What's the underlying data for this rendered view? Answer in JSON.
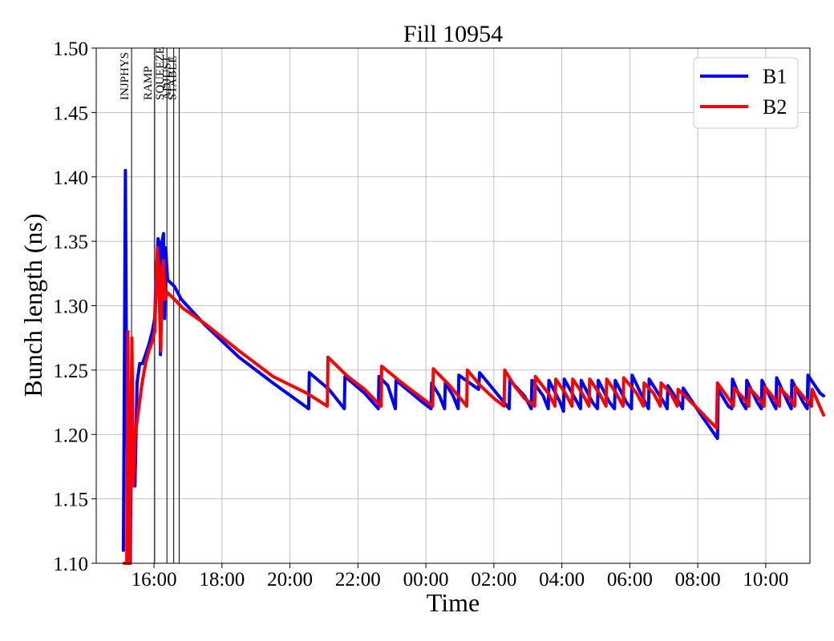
{
  "chart_data": {
    "type": "line",
    "title": "Fill 10954",
    "xlabel": "Time",
    "ylabel": "Bunch length (ns)",
    "x_unit": "hours since 00:00 of the first day",
    "xlim": [
      14.3,
      35.3
    ],
    "ylim": [
      1.1,
      1.5
    ],
    "x_ticks": [
      {
        "value": 16,
        "label": "16:00"
      },
      {
        "value": 18,
        "label": "18:00"
      },
      {
        "value": 20,
        "label": "20:00"
      },
      {
        "value": 22,
        "label": "22:00"
      },
      {
        "value": 24,
        "label": "00:00"
      },
      {
        "value": 26,
        "label": "02:00"
      },
      {
        "value": 28,
        "label": "04:00"
      },
      {
        "value": 30,
        "label": "06:00"
      },
      {
        "value": 32,
        "label": "08:00"
      },
      {
        "value": 34,
        "label": "10:00"
      }
    ],
    "y_ticks": [
      {
        "value": 1.1,
        "label": "1.10"
      },
      {
        "value": 1.15,
        "label": "1.15"
      },
      {
        "value": 1.2,
        "label": "1.20"
      },
      {
        "value": 1.25,
        "label": "1.25"
      },
      {
        "value": 1.3,
        "label": "1.30"
      },
      {
        "value": 1.35,
        "label": "1.35"
      },
      {
        "value": 1.4,
        "label": "1.40"
      },
      {
        "value": 1.45,
        "label": "1.45"
      },
      {
        "value": 1.5,
        "label": "1.50"
      }
    ],
    "grid": true,
    "legend_position": "top-right",
    "phases": [
      {
        "label": "INJPHYS",
        "x": 15.34
      },
      {
        "label": "RAMP",
        "x": 16.02
      },
      {
        "label": "SQUEEZE",
        "x": 16.38
      },
      {
        "label": "ADJUST",
        "x": 16.58
      },
      {
        "label": "STABLE",
        "x": 16.74
      }
    ],
    "series": [
      {
        "name": "B1",
        "color": "#0000ff",
        "points": [
          [
            15.1,
            1.11
          ],
          [
            15.16,
            1.405
          ],
          [
            15.19,
            1.24
          ],
          [
            15.22,
            1.18
          ],
          [
            15.24,
            1.1
          ],
          [
            15.27,
            1.14
          ],
          [
            15.3,
            1.1
          ],
          [
            15.34,
            1.22
          ],
          [
            15.38,
            1.2
          ],
          [
            15.44,
            1.16
          ],
          [
            15.5,
            1.24
          ],
          [
            15.58,
            1.255
          ],
          [
            15.66,
            1.255
          ],
          [
            15.75,
            1.262
          ],
          [
            15.85,
            1.27
          ],
          [
            15.95,
            1.28
          ],
          [
            16.02,
            1.29
          ],
          [
            16.08,
            1.33
          ],
          [
            16.12,
            1.352
          ],
          [
            16.16,
            1.348
          ],
          [
            16.19,
            1.262
          ],
          [
            16.24,
            1.35
          ],
          [
            16.28,
            1.356
          ],
          [
            16.31,
            1.29
          ],
          [
            16.34,
            1.345
          ],
          [
            16.4,
            1.32
          ],
          [
            16.6,
            1.315
          ],
          [
            16.8,
            1.305
          ],
          [
            17.5,
            1.285
          ],
          [
            18.5,
            1.26
          ],
          [
            19.5,
            1.24
          ],
          [
            20.55,
            1.22
          ],
          [
            20.57,
            1.248
          ],
          [
            21.15,
            1.235
          ],
          [
            21.6,
            1.22
          ],
          [
            21.62,
            1.245
          ],
          [
            22.2,
            1.232
          ],
          [
            22.6,
            1.22
          ],
          [
            22.62,
            1.245
          ],
          [
            22.88,
            1.238
          ],
          [
            23.1,
            1.22
          ],
          [
            23.12,
            1.242
          ],
          [
            23.9,
            1.225
          ],
          [
            24.15,
            1.22
          ],
          [
            24.17,
            1.24
          ],
          [
            24.4,
            1.23
          ],
          [
            24.55,
            1.22
          ],
          [
            24.57,
            1.24
          ],
          [
            24.8,
            1.23
          ],
          [
            24.95,
            1.22
          ],
          [
            24.97,
            1.246
          ],
          [
            25.55,
            1.235
          ],
          [
            25.58,
            1.248
          ],
          [
            26.3,
            1.225
          ],
          [
            26.45,
            1.22
          ],
          [
            26.47,
            1.242
          ],
          [
            26.9,
            1.23
          ],
          [
            27.1,
            1.22
          ],
          [
            27.12,
            1.242
          ],
          [
            27.45,
            1.23
          ],
          [
            27.6,
            1.22
          ],
          [
            27.62,
            1.242
          ],
          [
            27.95,
            1.225
          ],
          [
            28.05,
            1.218
          ],
          [
            28.07,
            1.243
          ],
          [
            28.45,
            1.225
          ],
          [
            28.55,
            1.22
          ],
          [
            28.57,
            1.242
          ],
          [
            28.9,
            1.225
          ],
          [
            29.05,
            1.22
          ],
          [
            29.07,
            1.242
          ],
          [
            29.4,
            1.225
          ],
          [
            29.55,
            1.22
          ],
          [
            29.57,
            1.242
          ],
          [
            29.9,
            1.225
          ],
          [
            30.05,
            1.22
          ],
          [
            30.07,
            1.246
          ],
          [
            30.45,
            1.225
          ],
          [
            30.55,
            1.22
          ],
          [
            30.57,
            1.243
          ],
          [
            31.0,
            1.225
          ],
          [
            31.1,
            1.22
          ],
          [
            31.12,
            1.238
          ],
          [
            31.45,
            1.225
          ],
          [
            31.55,
            1.22
          ],
          [
            31.57,
            1.236
          ],
          [
            32.1,
            1.215
          ],
          [
            32.58,
            1.197
          ],
          [
            32.6,
            1.235
          ],
          [
            32.9,
            1.222
          ],
          [
            33.0,
            1.22
          ],
          [
            33.02,
            1.243
          ],
          [
            33.3,
            1.225
          ],
          [
            33.42,
            1.22
          ],
          [
            33.44,
            1.242
          ],
          [
            33.75,
            1.225
          ],
          [
            33.87,
            1.22
          ],
          [
            33.89,
            1.242
          ],
          [
            34.2,
            1.225
          ],
          [
            34.3,
            1.22
          ],
          [
            34.32,
            1.244
          ],
          [
            34.65,
            1.225
          ],
          [
            34.75,
            1.22
          ],
          [
            34.77,
            1.242
          ],
          [
            35.1,
            1.225
          ],
          [
            35.22,
            1.22
          ],
          [
            35.24,
            1.246
          ],
          [
            35.6,
            1.232
          ],
          [
            35.7,
            1.23
          ]
        ]
      },
      {
        "name": "B2",
        "color": "#ff0000",
        "points": [
          [
            15.12,
            1.1
          ],
          [
            15.2,
            1.1
          ],
          [
            15.23,
            1.28
          ],
          [
            15.26,
            1.11
          ],
          [
            15.29,
            1.1
          ],
          [
            15.35,
            1.275
          ],
          [
            15.39,
            1.16
          ],
          [
            15.45,
            1.2
          ],
          [
            15.55,
            1.22
          ],
          [
            15.65,
            1.24
          ],
          [
            15.75,
            1.255
          ],
          [
            15.85,
            1.265
          ],
          [
            15.95,
            1.272
          ],
          [
            16.02,
            1.28
          ],
          [
            16.06,
            1.31
          ],
          [
            16.1,
            1.345
          ],
          [
            16.15,
            1.31
          ],
          [
            16.2,
            1.265
          ],
          [
            16.24,
            1.33
          ],
          [
            16.28,
            1.335
          ],
          [
            16.32,
            1.305
          ],
          [
            16.4,
            1.31
          ],
          [
            16.6,
            1.305
          ],
          [
            16.85,
            1.298
          ],
          [
            17.5,
            1.286
          ],
          [
            18.5,
            1.265
          ],
          [
            19.5,
            1.245
          ],
          [
            20.5,
            1.232
          ],
          [
            21.1,
            1.222
          ],
          [
            21.12,
            1.26
          ],
          [
            21.7,
            1.245
          ],
          [
            22.2,
            1.235
          ],
          [
            22.68,
            1.222
          ],
          [
            22.7,
            1.253
          ],
          [
            23.3,
            1.24
          ],
          [
            23.8,
            1.23
          ],
          [
            24.2,
            1.222
          ],
          [
            24.22,
            1.251
          ],
          [
            24.7,
            1.238
          ],
          [
            25.2,
            1.222
          ],
          [
            25.22,
            1.25
          ],
          [
            25.6,
            1.238
          ],
          [
            26.0,
            1.228
          ],
          [
            26.3,
            1.222
          ],
          [
            26.32,
            1.25
          ],
          [
            26.6,
            1.238
          ],
          [
            26.9,
            1.228
          ],
          [
            27.2,
            1.222
          ],
          [
            27.22,
            1.245
          ],
          [
            27.6,
            1.232
          ],
          [
            27.8,
            1.222
          ],
          [
            27.82,
            1.243
          ],
          [
            28.1,
            1.232
          ],
          [
            28.3,
            1.222
          ],
          [
            28.32,
            1.243
          ],
          [
            28.6,
            1.232
          ],
          [
            28.8,
            1.222
          ],
          [
            28.82,
            1.243
          ],
          [
            29.1,
            1.232
          ],
          [
            29.3,
            1.222
          ],
          [
            29.32,
            1.243
          ],
          [
            29.6,
            1.232
          ],
          [
            29.8,
            1.222
          ],
          [
            29.82,
            1.244
          ],
          [
            30.2,
            1.232
          ],
          [
            30.4,
            1.222
          ],
          [
            30.42,
            1.24
          ],
          [
            30.7,
            1.232
          ],
          [
            30.9,
            1.222
          ],
          [
            30.92,
            1.24
          ],
          [
            31.2,
            1.232
          ],
          [
            31.4,
            1.222
          ],
          [
            31.42,
            1.235
          ],
          [
            32.0,
            1.22
          ],
          [
            32.55,
            1.205
          ],
          [
            32.58,
            1.24
          ],
          [
            32.9,
            1.228
          ],
          [
            33.05,
            1.222
          ],
          [
            33.07,
            1.236
          ],
          [
            33.35,
            1.228
          ],
          [
            33.5,
            1.222
          ],
          [
            33.52,
            1.236
          ],
          [
            33.8,
            1.228
          ],
          [
            33.95,
            1.222
          ],
          [
            33.97,
            1.237
          ],
          [
            34.25,
            1.228
          ],
          [
            34.4,
            1.222
          ],
          [
            34.42,
            1.236
          ],
          [
            34.7,
            1.228
          ],
          [
            34.85,
            1.222
          ],
          [
            34.87,
            1.237
          ],
          [
            35.15,
            1.228
          ],
          [
            35.35,
            1.222
          ],
          [
            35.37,
            1.235
          ],
          [
            35.7,
            1.215
          ]
        ]
      }
    ]
  }
}
